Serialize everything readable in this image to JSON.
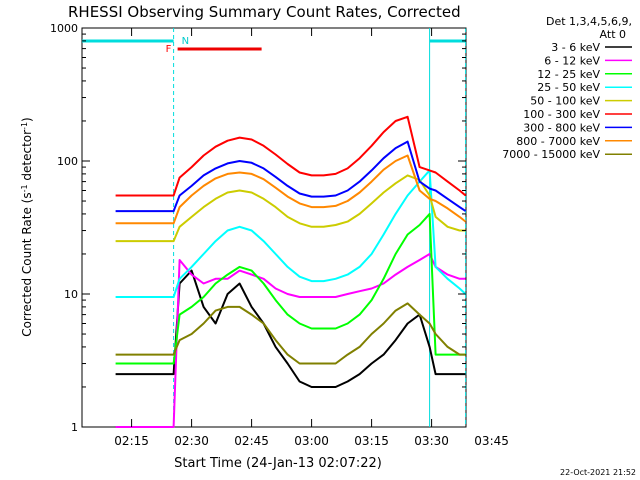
{
  "chart_data": {
    "type": "line",
    "title": "RHESSI Observing Summary Count Rates, Corrected",
    "xlabel": "Start Time (24-Jan-13 02:07:22)",
    "ylabel_main": "Corrected Count Rate (s",
    "ylabel_sup1": "-1",
    "ylabel_mid": " detector",
    "ylabel_sup2": "-1",
    "ylabel_end": ")",
    "yscale": "log",
    "ylim": [
      1,
      1000
    ],
    "xlim_minutes": [
      2.6,
      98.6
    ],
    "x_ticks": [
      {
        "label": "02:15",
        "minute": 15
      },
      {
        "label": "02:30",
        "minute": 30
      },
      {
        "label": "02:45",
        "minute": 45
      },
      {
        "label": "03:00",
        "minute": 60
      },
      {
        "label": "03:15",
        "minute": 75
      },
      {
        "label": "03:30",
        "minute": 90
      },
      {
        "label": "03:45",
        "minute": 105
      }
    ],
    "y_ticks": [
      {
        "label": "1",
        "value": 1
      },
      {
        "label": "10",
        "value": 10
      },
      {
        "label": "100",
        "value": 100
      },
      {
        "label": "1000",
        "value": 1000
      }
    ],
    "legend": {
      "header_line1": "Det 1,3,4,5,6,9,",
      "header_line2": "Att 0",
      "placement": "outside-right"
    },
    "timestamp": "22-Oct-2021 21:52",
    "annotations": {
      "night_intervals_minutes": [
        [
          2.6,
          25.5
        ],
        [
          89.5,
          98.5
        ]
      ],
      "flag_F": {
        "label": "F",
        "start_minute": 26.5,
        "end_minute": 47.5
      },
      "flag_N": {
        "label": "N",
        "minute": 27.0
      }
    },
    "x_minutes": [
      11,
      14,
      17,
      20,
      23,
      25.5,
      27,
      30,
      33,
      36,
      39,
      42,
      45,
      48,
      51,
      54,
      57,
      60,
      63,
      66,
      69,
      72,
      75,
      78,
      81,
      84,
      87,
      89.5,
      91,
      94,
      97,
      98.5
    ],
    "series": [
      {
        "name": "3 - 6 keV",
        "color": "#000000",
        "values": [
          2.5,
          2.5,
          2.5,
          2.5,
          2.5,
          2.5,
          12,
          15,
          8,
          6,
          10,
          12,
          8,
          6,
          4,
          3,
          2.2,
          2,
          2,
          2,
          2.2,
          2.5,
          3,
          3.5,
          4.5,
          6,
          7,
          4,
          2.5,
          2.5,
          2.5,
          2.5
        ]
      },
      {
        "name": "6 - 12 keV",
        "color": "#ff00ff",
        "values": [
          1,
          1,
          1,
          1,
          1,
          1,
          18,
          14,
          12,
          13,
          13,
          15,
          14,
          13,
          11,
          10,
          9.5,
          9.5,
          9.5,
          9.5,
          10,
          10.5,
          11,
          12,
          14,
          16,
          18,
          20,
          16,
          14,
          13,
          13
        ]
      },
      {
        "name": "12 - 25 keV",
        "color": "#00ff00",
        "values": [
          3,
          3,
          3,
          3,
          3,
          3,
          7,
          8,
          9.5,
          12,
          14,
          16,
          15,
          12,
          9,
          7,
          6,
          5.5,
          5.5,
          5.5,
          6,
          7,
          9,
          13,
          20,
          28,
          33,
          40,
          3.5,
          3.5,
          3.5,
          3.5
        ]
      },
      {
        "name": "25 - 50 keV",
        "color": "#00ffff",
        "values": [
          9.5,
          9.5,
          9.5,
          9.5,
          9.5,
          9.5,
          13,
          16,
          20,
          25,
          30,
          32,
          30,
          25,
          20,
          16,
          13.5,
          12.5,
          12.5,
          13,
          14,
          16,
          20,
          28,
          40,
          55,
          70,
          85,
          16,
          13,
          11,
          10
        ]
      },
      {
        "name": "50 - 100 keV",
        "color": "#cccc00",
        "values": [
          25,
          25,
          25,
          25,
          25,
          25,
          32,
          38,
          45,
          52,
          58,
          60,
          58,
          52,
          45,
          38,
          34,
          32,
          32,
          33,
          35,
          40,
          48,
          58,
          68,
          78,
          72,
          55,
          38,
          32,
          30,
          30
        ]
      },
      {
        "name": "100 - 300 keV",
        "color": "#ff0000",
        "values": [
          55,
          55,
          55,
          55,
          55,
          55,
          75,
          90,
          110,
          128,
          142,
          150,
          145,
          130,
          112,
          95,
          82,
          78,
          78,
          80,
          88,
          105,
          130,
          165,
          200,
          215,
          90,
          85,
          82,
          70,
          60,
          55
        ]
      },
      {
        "name": "300 - 800 keV",
        "color": "#0000ff",
        "values": [
          42,
          42,
          42,
          42,
          42,
          42,
          55,
          65,
          78,
          88,
          96,
          100,
          97,
          88,
          76,
          65,
          57,
          54,
          54,
          55,
          60,
          70,
          85,
          105,
          125,
          140,
          70,
          62,
          60,
          52,
          45,
          42
        ]
      },
      {
        "name": "800 - 7000 keV",
        "color": "#ff8800",
        "values": [
          34,
          34,
          34,
          34,
          34,
          34,
          45,
          55,
          65,
          74,
          80,
          82,
          80,
          73,
          63,
          54,
          48,
          45,
          45,
          46,
          50,
          58,
          70,
          86,
          100,
          110,
          60,
          52,
          50,
          44,
          38,
          35
        ]
      },
      {
        "name": "7000 - 15000 keV",
        "color": "#808000",
        "values": [
          3.5,
          3.5,
          3.5,
          3.5,
          3.5,
          3.5,
          4.5,
          5,
          6,
          7.5,
          8,
          8,
          7,
          6,
          4.5,
          3.5,
          3,
          3,
          3,
          3,
          3.5,
          4,
          5,
          6,
          7.5,
          8.5,
          7,
          6,
          5,
          4,
          3.5,
          3.5
        ]
      }
    ]
  }
}
